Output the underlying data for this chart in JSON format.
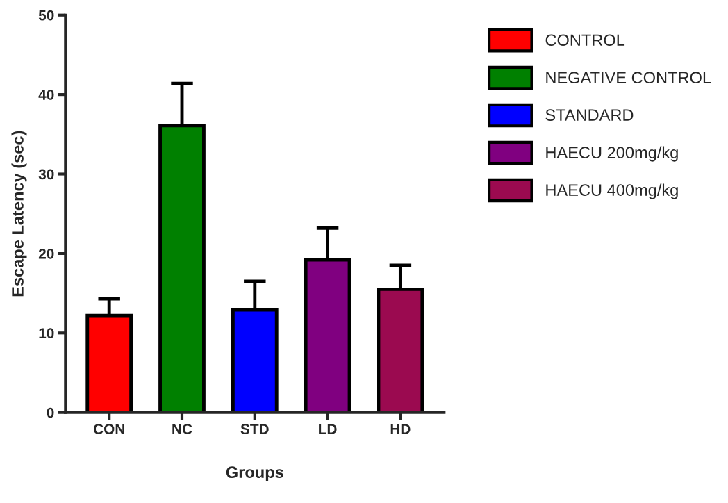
{
  "chart_data": {
    "type": "bar",
    "xlabel": "Groups",
    "ylabel": "Escape Latency (sec)",
    "categories": [
      "CON",
      "NC",
      "STD",
      "LD",
      "HD"
    ],
    "series": [
      {
        "name": "CONTROL",
        "color": "#ff0000",
        "values": [
          12.2,
          null,
          null,
          null,
          null
        ],
        "errors": [
          [
            12.2,
            14.3
          ],
          null,
          null,
          null,
          null
        ]
      },
      {
        "name": "NEGATIVE CONTROL",
        "color": "#008000",
        "values": [
          null,
          36.1,
          null,
          null,
          null
        ],
        "errors": [
          null,
          [
            36.1,
            41.4
          ],
          null,
          null,
          null
        ]
      },
      {
        "name": "STANDARD",
        "color": "#0000ff",
        "values": [
          null,
          null,
          12.9,
          null,
          null
        ],
        "errors": [
          null,
          null,
          [
            12.9,
            16.5
          ],
          null,
          null
        ]
      },
      {
        "name": "HAECU 200mg/kg",
        "color": "#800080",
        "values": [
          null,
          null,
          null,
          19.2,
          null
        ],
        "errors": [
          null,
          null,
          null,
          [
            19.2,
            23.2
          ],
          null
        ]
      },
      {
        "name": "HAECU 400mg/kg",
        "color": "#9b0a50",
        "values": [
          null,
          null,
          null,
          null,
          15.5
        ],
        "errors": [
          null,
          null,
          null,
          null,
          [
            15.5,
            18.5
          ]
        ]
      }
    ],
    "ylim": [
      0,
      50
    ],
    "yticks": [
      0,
      10,
      20,
      30,
      40,
      50
    ],
    "grid": false,
    "legend": "right"
  }
}
